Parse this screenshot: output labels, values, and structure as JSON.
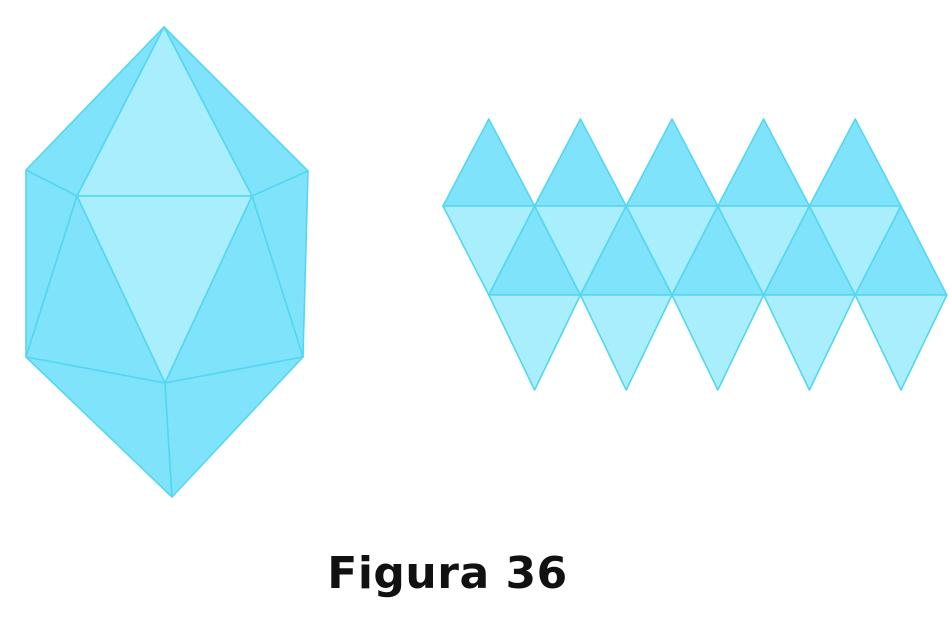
{
  "figure": {
    "caption": "Figura 36"
  },
  "colors": {
    "face_dark": "#7fe4fb",
    "face_light": "#a9eefc",
    "edge": "#54d6f2",
    "caption_text": "#111111"
  },
  "solid": {
    "name": "icosahedron",
    "faces": 20
  }
}
